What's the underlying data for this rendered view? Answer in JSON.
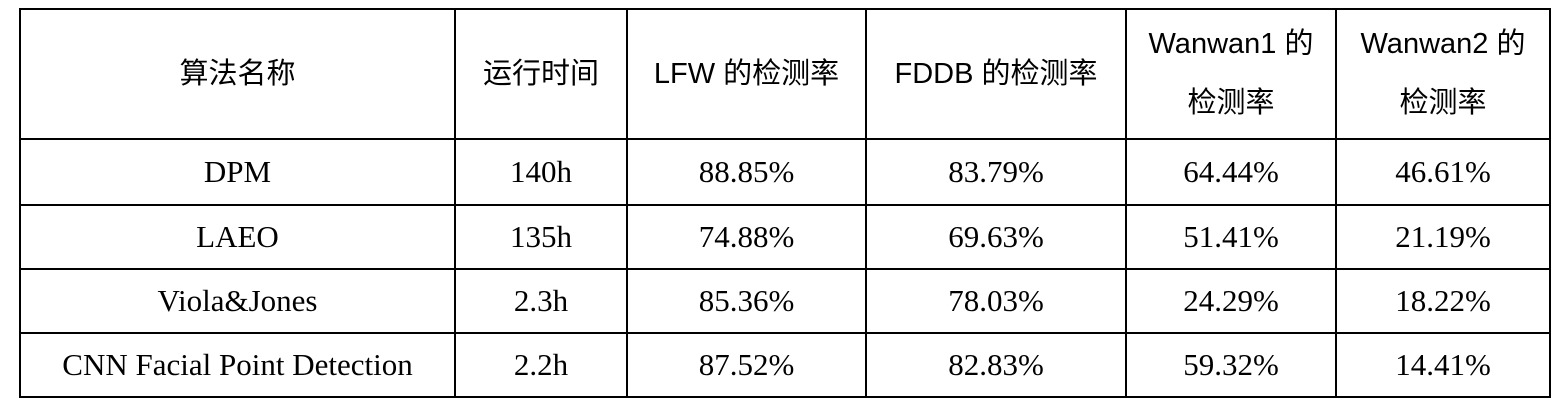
{
  "table": {
    "headers": [
      [
        "算法名称"
      ],
      [
        "运行时间"
      ],
      [
        "LFW 的检测率"
      ],
      [
        "FDDB 的检测率"
      ],
      [
        "Wanwan1 的",
        "检测率"
      ],
      [
        "Wanwan2 的",
        "检测率"
      ]
    ],
    "rows": [
      [
        "DPM",
        "140h",
        "88.85%",
        "83.79%",
        "64.44%",
        "46.61%"
      ],
      [
        "LAEO",
        "135h",
        "74.88%",
        "69.63%",
        "51.41%",
        "21.19%"
      ],
      [
        "Viola&Jones",
        "2.3h",
        "85.36%",
        "78.03%",
        "24.29%",
        "18.22%"
      ],
      [
        "CNN Facial Point Detection",
        "2.2h",
        "87.52%",
        "82.83%",
        "59.32%",
        "14.41%"
      ]
    ]
  }
}
